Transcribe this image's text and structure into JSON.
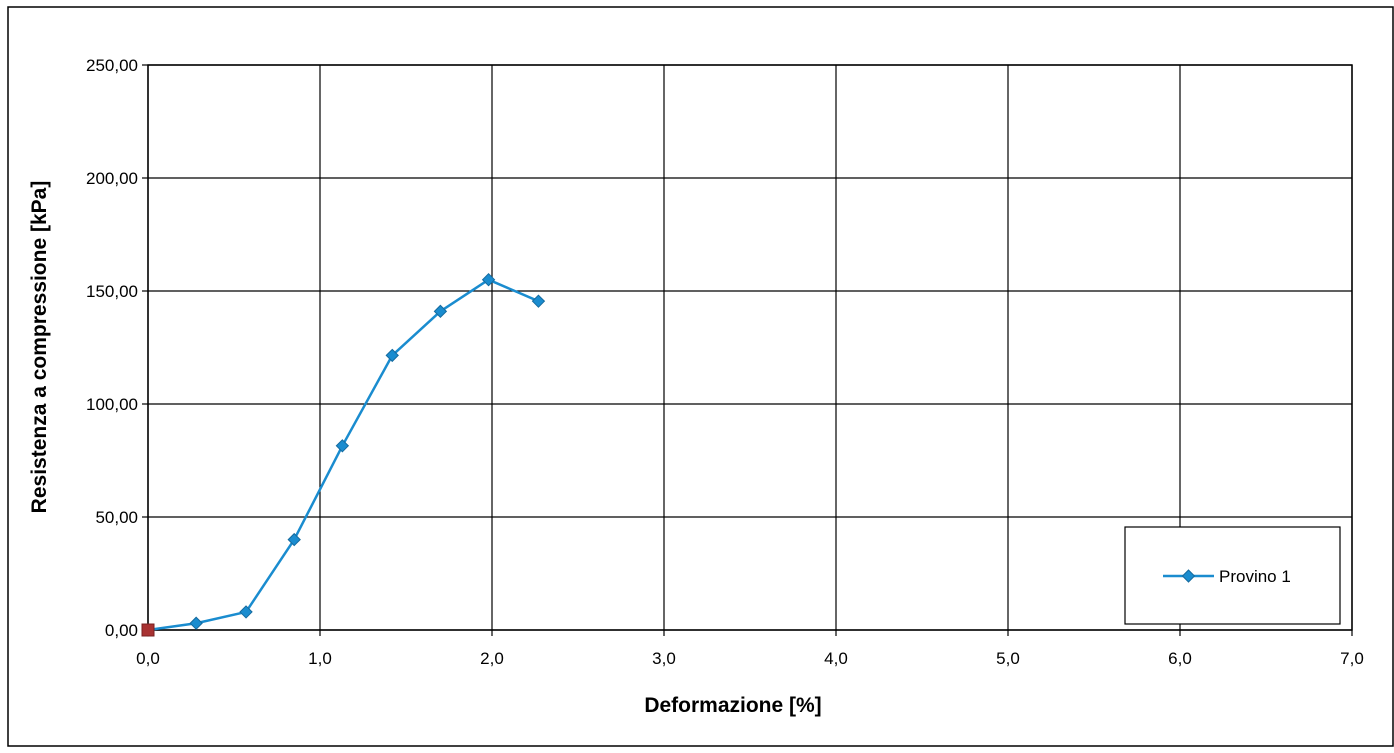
{
  "chart_data": {
    "type": "line",
    "title": "",
    "xlabel": "Deformazione [%]",
    "ylabel": "Resistenza a compressione [kPa]",
    "xlim": [
      0,
      7
    ],
    "ylim": [
      0,
      250
    ],
    "x_ticks": [
      0,
      1,
      2,
      3,
      4,
      5,
      6,
      7
    ],
    "x_tick_labels": [
      "0,0",
      "1,0",
      "2,0",
      "3,0",
      "4,0",
      "5,0",
      "6,0",
      "7,0"
    ],
    "y_ticks": [
      0,
      50,
      100,
      150,
      200,
      250
    ],
    "y_tick_labels": [
      "0,00",
      "50,00",
      "100,00",
      "150,00",
      "200,00",
      "250,00"
    ],
    "grid": true,
    "legend_position": "bottom-right",
    "series": [
      {
        "name": "Provino 1",
        "color": "#1a8ccf",
        "marker": "diamond",
        "x": [
          0.0,
          0.28,
          0.57,
          0.85,
          1.13,
          1.42,
          1.7,
          1.98,
          2.27
        ],
        "y": [
          0.0,
          3.0,
          8.0,
          40.0,
          81.5,
          121.5,
          141.0,
          155.0,
          145.5
        ]
      },
      {
        "color": "#a83232",
        "marker": "square",
        "x": [
          0.0
        ],
        "y": [
          0.0
        ]
      }
    ]
  }
}
